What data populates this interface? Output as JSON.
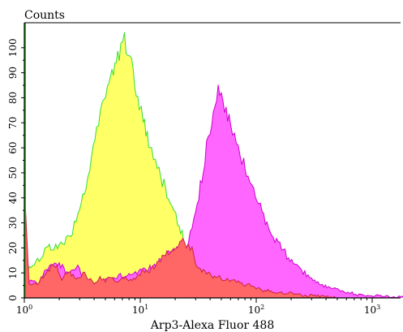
{
  "chart_data": {
    "type": "area",
    "ylabel": "Counts",
    "xlabel": "Arp3-Alexa Fluor 488",
    "x_scale": "log",
    "xlim": [
      1,
      2000
    ],
    "ylim": [
      0,
      110
    ],
    "grid": false,
    "legend": "none",
    "x_ticks": [
      {
        "value": 1,
        "base": "10",
        "exp": "0"
      },
      {
        "value": 10,
        "base": "10",
        "exp": "1"
      },
      {
        "value": 100,
        "base": "10",
        "exp": "2"
      },
      {
        "value": 1000,
        "base": "10",
        "exp": "3"
      }
    ],
    "y_ticks": [
      0,
      10,
      20,
      30,
      40,
      50,
      60,
      70,
      80,
      90,
      100
    ],
    "series": [
      {
        "fill": "#ffff66",
        "stroke": "#33dd33",
        "x": [
          1,
          1.1,
          1.3,
          1.5,
          1.8,
          2.0,
          2.3,
          2.6,
          3.0,
          3.4,
          3.8,
          4.2,
          4.7,
          5.2,
          5.7,
          6.2,
          6.8,
          7.3,
          7.8,
          8.4,
          9.0,
          9.8,
          10.6,
          11.5,
          12.5,
          13.5,
          14.5,
          15.5,
          16.5,
          18,
          19.5,
          21,
          23,
          25,
          28,
          31,
          35,
          40,
          46,
          55,
          70,
          90,
          130,
          200
        ],
        "y": [
          3,
          12,
          15,
          19,
          21,
          20,
          23,
          27,
          35,
          45,
          57,
          67,
          76,
          84,
          90,
          95,
          99,
          105,
          96,
          93,
          86,
          78,
          72,
          64,
          58,
          55,
          52,
          47,
          44,
          41,
          35,
          30,
          25,
          21,
          17,
          15,
          11,
          8,
          6,
          5,
          4,
          3,
          2,
          1
        ]
      },
      {
        "fill": "#ff66ff",
        "stroke": "#cc00cc",
        "x": [
          1,
          1.1,
          1.3,
          1.6,
          2.0,
          2.4,
          2.8,
          3.3,
          3.8,
          4.5,
          5.5,
          6.5,
          8,
          10,
          12.5,
          15,
          18,
          20,
          22,
          24,
          26,
          28,
          30,
          33,
          36,
          40,
          44,
          47,
          50,
          55,
          60,
          65,
          70,
          78,
          85,
          95,
          105,
          120,
          140,
          160,
          190,
          230,
          280,
          340,
          420,
          520,
          650,
          800,
          1000,
          1300,
          1700,
          2000
        ],
        "y": [
          2,
          7,
          6,
          12,
          14,
          9,
          13,
          8,
          5,
          7,
          8,
          9,
          9,
          11,
          12,
          15,
          18,
          20,
          19,
          20,
          23,
          30,
          37,
          44,
          56,
          67,
          77,
          86,
          81,
          74,
          69,
          64,
          60,
          54,
          48,
          43,
          37,
          31,
          25,
          21,
          16,
          12,
          9,
          6,
          4,
          3,
          2,
          1,
          1,
          0.5,
          0.5,
          0
        ]
      },
      {
        "fill": "#ff6666",
        "stroke": "#cc2244",
        "x": [
          1,
          1.1,
          1.3,
          1.5,
          1.8,
          2.1,
          2.4,
          2.8,
          3.2,
          3.6,
          4.0,
          4.5,
          5.0,
          5.6,
          6.5,
          7.5,
          8.5,
          10,
          12,
          14,
          16,
          18,
          20,
          22,
          24,
          26,
          28,
          30,
          33,
          36,
          40,
          45,
          50,
          56,
          63,
          70,
          80,
          90,
          100,
          115,
          130,
          150,
          170,
          200,
          250,
          300,
          400,
          500
        ],
        "y": [
          43,
          5,
          6,
          9,
          14,
          8,
          11,
          7,
          10,
          8,
          6,
          8,
          7,
          9,
          6,
          8,
          7,
          10,
          11,
          14,
          17,
          19,
          21,
          22,
          22,
          20,
          19,
          14,
          12,
          10,
          9,
          8,
          8,
          7,
          7,
          6,
          5,
          5,
          4,
          3,
          3,
          2,
          2,
          2,
          1,
          1,
          0.5,
          0
        ]
      }
    ]
  }
}
